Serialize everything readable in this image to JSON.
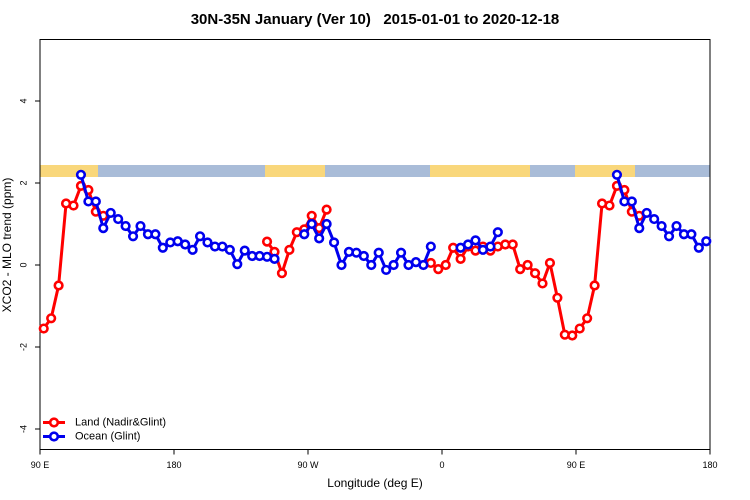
{
  "chart_data": {
    "type": "line",
    "title": "30N-35N January (Ver 10)   2015-01-01 to 2020-12-18",
    "x_label": "Longitude (deg E)",
    "y_label": "XCO2 - MLO trend (ppm)",
    "xlim": [
      90,
      540
    ],
    "ylim": [
      -4.5,
      5.5
    ],
    "xticks": [
      {
        "value": 90,
        "label": "90 E"
      },
      180,
      {
        "value": 270,
        "label": "90 W"
      },
      {
        "value": 360,
        "label": "0"
      },
      {
        "value": 450,
        "label": "90 E"
      },
      {
        "value": 540,
        "label": "180"
      }
    ],
    "yticks": [
      -4,
      -2,
      0,
      2,
      4
    ],
    "legend": "bottom-left",
    "x": [
      92.5,
      97.5,
      102.5,
      107.5,
      112.5,
      117.5,
      122.5,
      127.5,
      132.5,
      137.5,
      142.5,
      147.5,
      152.5,
      157.5,
      162.5,
      167.5,
      172.5,
      177.5,
      182.5,
      187.5,
      192.5,
      197.5,
      202.5,
      207.5,
      212.5,
      217.5,
      222.5,
      227.5,
      232.5,
      237.5,
      242.5,
      247.5,
      252.5,
      257.5,
      262.5,
      267.5,
      272.5,
      277.5,
      282.5,
      287.5,
      292.5,
      297.5,
      302.5,
      307.5,
      312.5,
      317.5,
      322.5,
      327.5,
      332.5,
      337.5,
      342.5,
      347.5,
      352.5,
      357.5,
      362.5,
      367.5,
      372.5,
      377.5,
      382.5,
      387.5,
      392.5,
      397.5,
      402.5,
      407.5,
      412.5,
      417.5,
      422.5,
      427.5,
      432.5,
      437.5,
      442.5,
      447.5,
      452.5,
      457.5,
      462.5,
      467.5,
      472.5,
      477.5,
      482.5,
      487.5,
      492.5,
      497.5,
      502.5,
      507.5,
      512.5,
      517.5,
      522.5,
      527.5,
      532.5,
      537.5
    ],
    "series": [
      {
        "name": "Land (Nadir&Glint)",
        "color": "#ff0000",
        "values": [
          -1.55,
          -1.3,
          -0.5,
          1.5,
          1.45,
          1.93,
          1.83,
          1.3,
          1.2,
          null,
          null,
          null,
          null,
          null,
          null,
          null,
          null,
          null,
          null,
          null,
          null,
          null,
          null,
          null,
          null,
          null,
          null,
          null,
          null,
          null,
          0.57,
          0.32,
          -0.2,
          0.37,
          0.8,
          0.87,
          1.2,
          0.9,
          1.35,
          null,
          null,
          null,
          null,
          null,
          null,
          null,
          null,
          null,
          null,
          null,
          null,
          null,
          0.05,
          -0.1,
          0.0,
          0.42,
          0.15,
          0.45,
          0.35,
          0.45,
          0.35,
          0.45,
          0.5,
          0.5,
          -0.1,
          0.0,
          -0.2,
          -0.45,
          0.05,
          -0.8,
          -1.7,
          -1.72,
          -1.55,
          -1.3,
          -0.5,
          1.5,
          1.45,
          1.93,
          1.83,
          1.3,
          1.2,
          null,
          null,
          null,
          null,
          null,
          null,
          null,
          null,
          null
        ]
      },
      {
        "name": "Ocean (Glint)",
        "color": "#0000ee",
        "values": [
          null,
          null,
          null,
          null,
          null,
          2.2,
          1.55,
          1.55,
          0.9,
          1.27,
          1.12,
          0.95,
          0.7,
          0.95,
          0.75,
          0.75,
          0.42,
          0.55,
          0.58,
          0.5,
          0.37,
          0.7,
          0.55,
          0.45,
          0.45,
          0.37,
          0.02,
          0.35,
          0.22,
          0.22,
          0.2,
          0.15,
          null,
          null,
          null,
          0.75,
          1.0,
          0.65,
          1.0,
          0.55,
          0.0,
          0.32,
          0.3,
          0.22,
          0.0,
          0.3,
          -0.12,
          0.0,
          0.3,
          0.0,
          0.07,
          0.0,
          0.45,
          null,
          null,
          null,
          0.42,
          0.5,
          0.6,
          0.37,
          0.45,
          0.8,
          null,
          null,
          null,
          null,
          null,
          null,
          null,
          null,
          null,
          null,
          null,
          null,
          null,
          null,
          null,
          2.2,
          1.55,
          1.55,
          0.9,
          1.27,
          1.12,
          0.95,
          0.7,
          0.95,
          0.75,
          0.75,
          0.42,
          0.58
        ]
      }
    ]
  }
}
